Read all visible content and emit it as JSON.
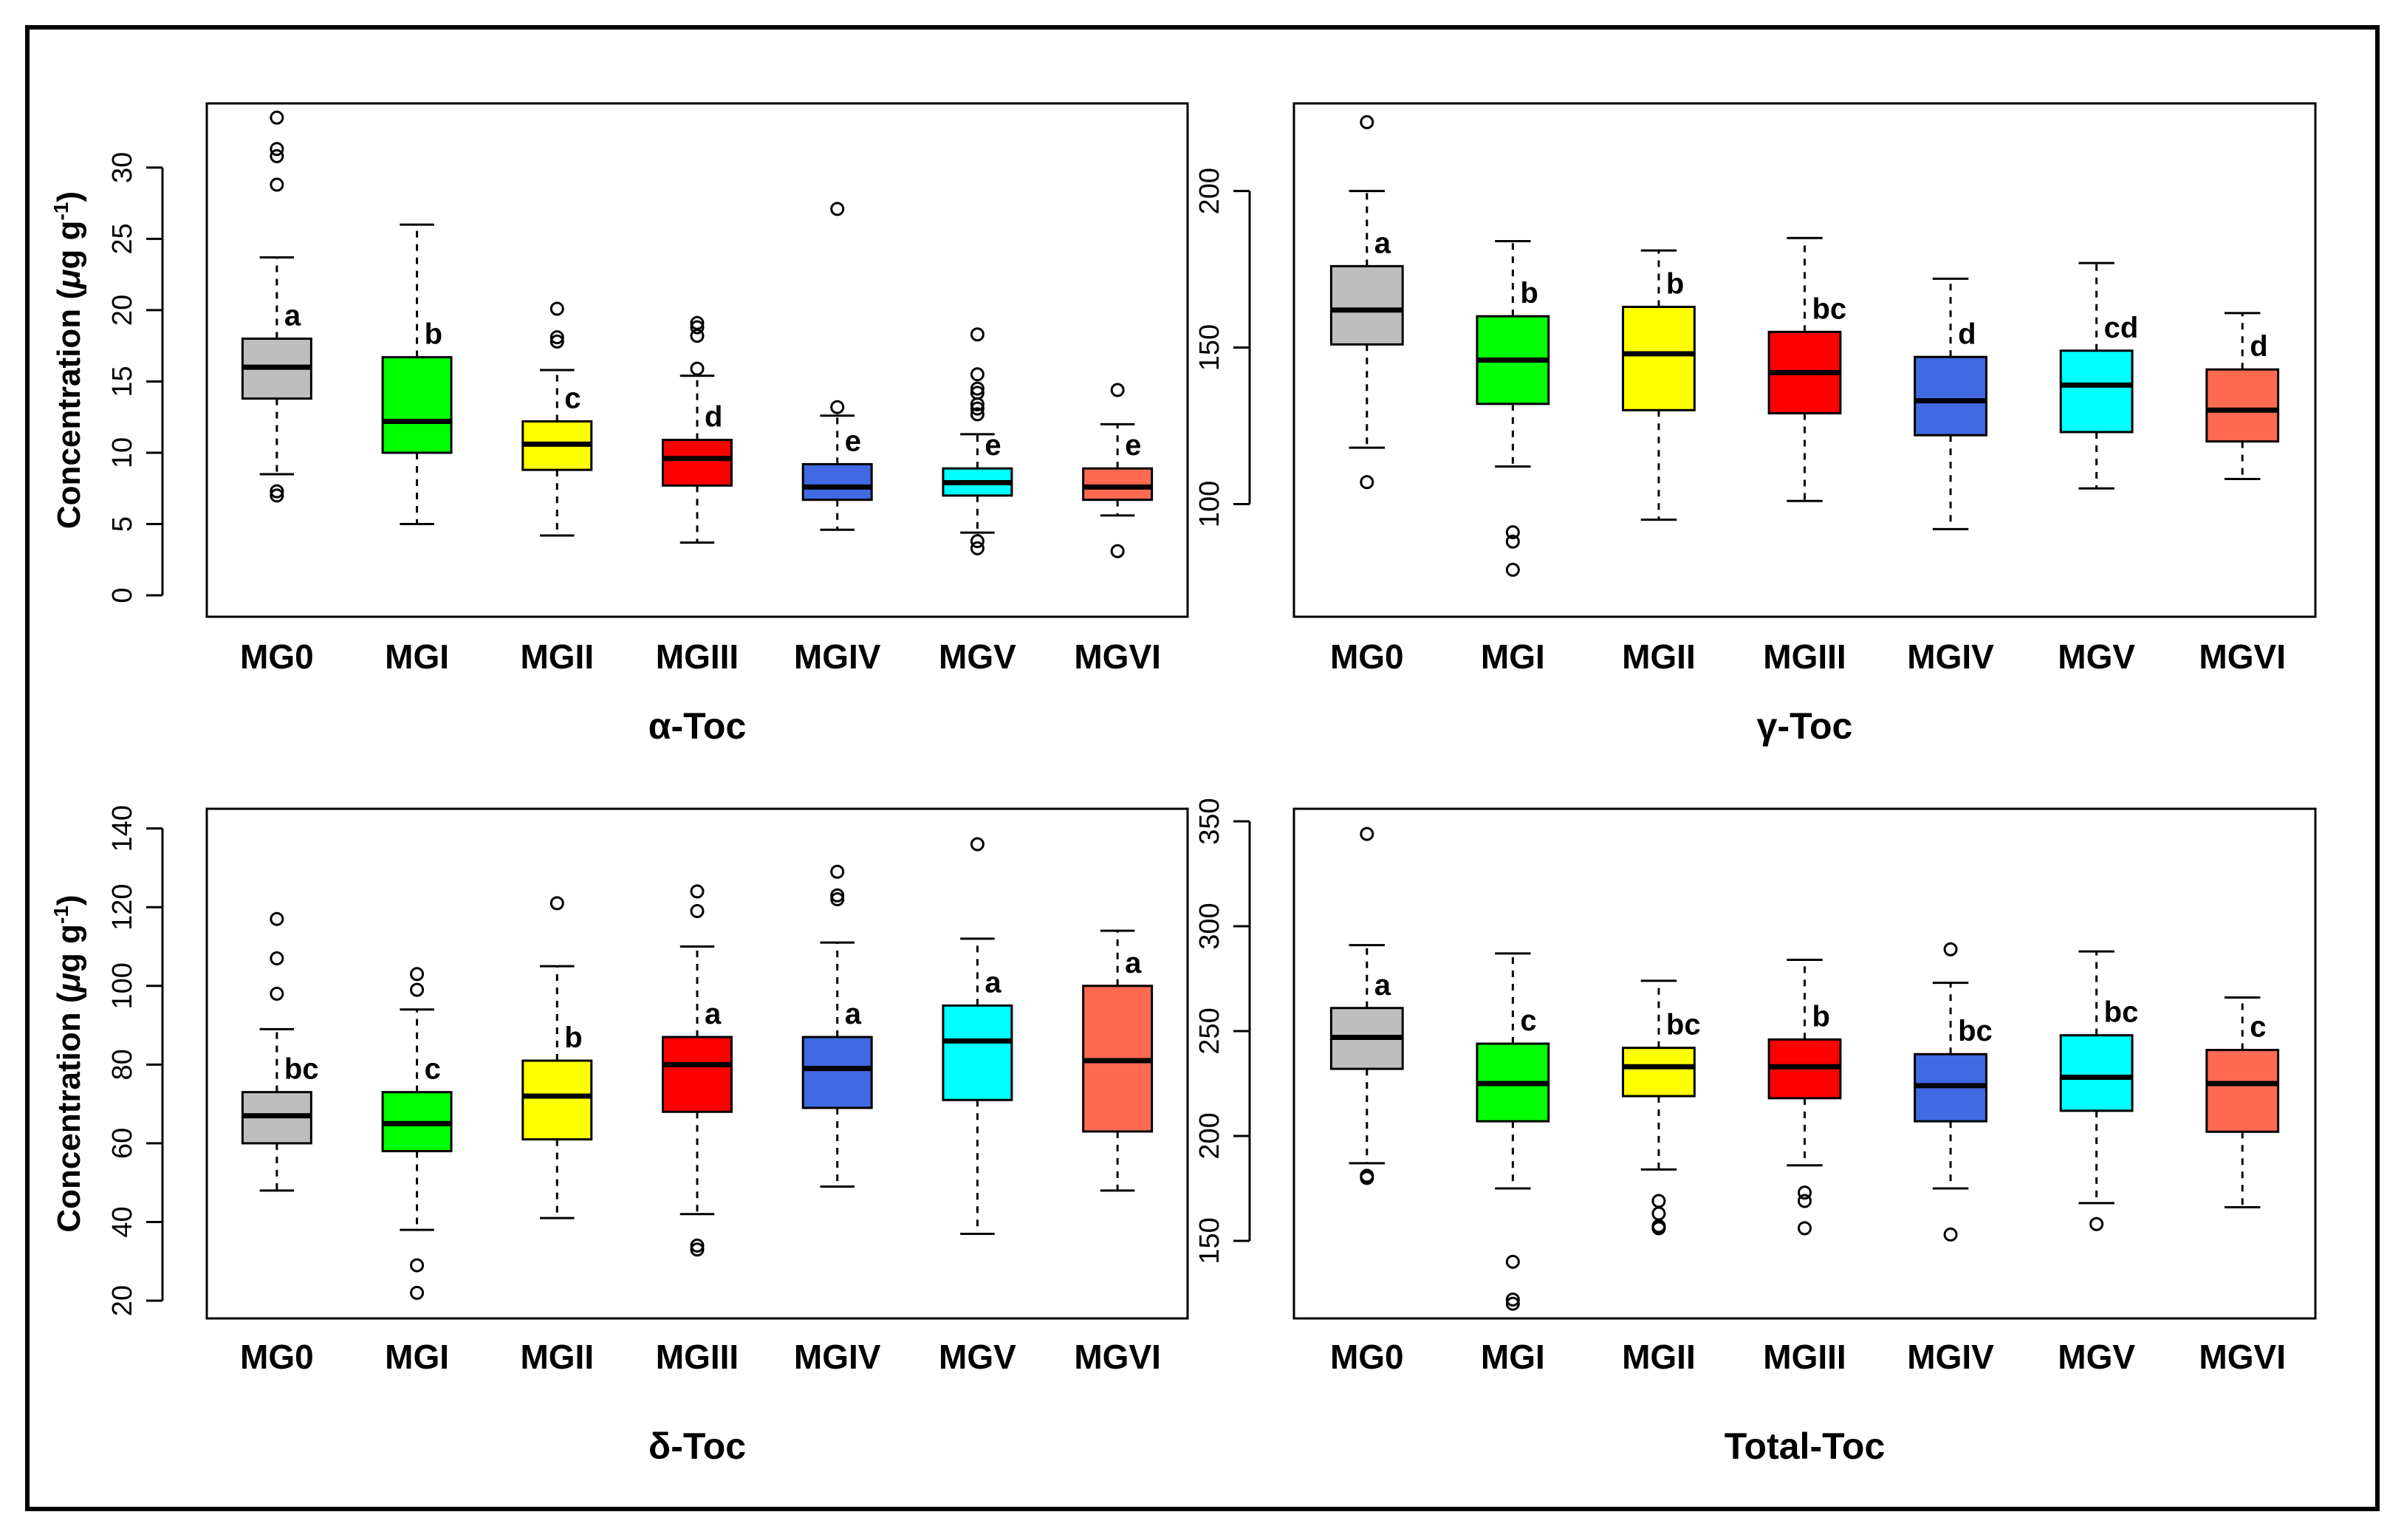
{
  "figure": {
    "colors": {
      "MG0": "#bebebe",
      "MGI": "#00ff00",
      "MGII": "#ffff00",
      "MGIII": "#ff0000",
      "MGIV": "#4169e1",
      "MGV": "#00ffff",
      "MGVI": "#ff6a50"
    }
  },
  "chart_data": [
    {
      "type": "box",
      "title": "α-Toc",
      "ylabel": "Concentration (μg g⁻¹)",
      "ylabel_parts": {
        "main": "Concentration (",
        "mu": "μ",
        "unit": "g g",
        "sup": "-1",
        "close": ")"
      },
      "ylim": [
        -1.5,
        34.5
      ],
      "yticks": [
        0,
        5,
        10,
        15,
        20,
        25,
        30
      ],
      "yticks_labels": [
        "0",
        "5",
        "10",
        "15",
        "20",
        "25",
        "30"
      ],
      "categories": [
        "MG0",
        "MGI",
        "MGII",
        "MGIII",
        "MGIV",
        "MGV",
        "MGVI"
      ],
      "boxes": [
        {
          "wlo": 8.5,
          "q1": 13.8,
          "med": 16.0,
          "q3": 18.0,
          "whi": 23.7,
          "outliers": [
            7.0,
            7.3,
            28.8,
            30.8,
            31.3,
            33.5
          ],
          "letter": "a"
        },
        {
          "wlo": 5.0,
          "q1": 10.0,
          "med": 12.2,
          "q3": 16.7,
          "whi": 26.0,
          "outliers": [],
          "letter": "b"
        },
        {
          "wlo": 4.2,
          "q1": 8.8,
          "med": 10.6,
          "q3": 12.2,
          "whi": 15.8,
          "outliers": [
            17.8,
            18.1,
            20.1
          ],
          "letter": "c"
        },
        {
          "wlo": 3.7,
          "q1": 7.7,
          "med": 9.6,
          "q3": 10.9,
          "whi": 15.4,
          "outliers": [
            15.9,
            18.2,
            18.8,
            19.1
          ],
          "letter": "d"
        },
        {
          "wlo": 4.6,
          "q1": 6.7,
          "med": 7.6,
          "q3": 9.2,
          "whi": 12.6,
          "outliers": [
            13.2,
            27.1
          ],
          "letter": "e"
        },
        {
          "wlo": 4.4,
          "q1": 7.0,
          "med": 7.9,
          "q3": 8.9,
          "whi": 11.3,
          "outliers": [
            3.3,
            3.8,
            12.7,
            13.1,
            13.4,
            14.2,
            14.5,
            15.5,
            18.3
          ],
          "letter": "e"
        },
        {
          "wlo": 5.6,
          "q1": 6.7,
          "med": 7.6,
          "q3": 8.9,
          "whi": 12.0,
          "outliers": [
            3.1,
            14.4
          ],
          "letter": "e"
        }
      ]
    },
    {
      "type": "box",
      "title": "γ-Toc",
      "ylabel": "",
      "ylim": [
        64,
        228
      ],
      "yticks": [
        100,
        150,
        200
      ],
      "yticks_labels": [
        "100",
        "150",
        "200"
      ],
      "categories": [
        "MG0",
        "MGI",
        "MGII",
        "MGIII",
        "MGIV",
        "MGV",
        "MGVI"
      ],
      "boxes": [
        {
          "wlo": 118,
          "q1": 151,
          "med": 162,
          "q3": 176,
          "whi": 200,
          "outliers": [
            107,
            222
          ],
          "letter": "a"
        },
        {
          "wlo": 112,
          "q1": 132,
          "med": 146,
          "q3": 160,
          "whi": 184,
          "outliers": [
            79,
            88,
            91
          ],
          "letter": "b"
        },
        {
          "wlo": 95,
          "q1": 130,
          "med": 148,
          "q3": 163,
          "whi": 181,
          "outliers": [],
          "letter": "b"
        },
        {
          "wlo": 101,
          "q1": 129,
          "med": 142,
          "q3": 155,
          "whi": 185,
          "outliers": [],
          "letter": "bc"
        },
        {
          "wlo": 92,
          "q1": 122,
          "med": 133,
          "q3": 147,
          "whi": 172,
          "outliers": [],
          "letter": "d"
        },
        {
          "wlo": 105,
          "q1": 123,
          "med": 138,
          "q3": 149,
          "whi": 177,
          "outliers": [],
          "letter": "cd"
        },
        {
          "wlo": 108,
          "q1": 120,
          "med": 130,
          "q3": 143,
          "whi": 161,
          "outliers": [],
          "letter": "d"
        }
      ]
    },
    {
      "type": "box",
      "title": "δ-Toc",
      "ylabel": "Concentration (μg g⁻¹)",
      "ylabel_parts": {
        "main": "Concentration (",
        "mu": "μ",
        "unit": "g g",
        "sup": "-1",
        "close": ")"
      },
      "ylim": [
        15.5,
        145
      ],
      "yticks": [
        20,
        40,
        60,
        80,
        100,
        120,
        140
      ],
      "yticks_labels": [
        "20",
        "40",
        "60",
        "80",
        "100",
        "120",
        "140"
      ],
      "categories": [
        "MG0",
        "MGI",
        "MGII",
        "MGIII",
        "MGIV",
        "MGV",
        "MGVI"
      ],
      "boxes": [
        {
          "wlo": 48,
          "q1": 60,
          "med": 67,
          "q3": 73,
          "whi": 89,
          "outliers": [
            98,
            107,
            117
          ],
          "letter": "bc"
        },
        {
          "wlo": 38,
          "q1": 58,
          "med": 65,
          "q3": 73,
          "whi": 94,
          "outliers": [
            22,
            29,
            99,
            103
          ],
          "letter": "c"
        },
        {
          "wlo": 41,
          "q1": 61,
          "med": 72,
          "q3": 81,
          "whi": 105,
          "outliers": [
            121
          ],
          "letter": "b"
        },
        {
          "wlo": 42,
          "q1": 68,
          "med": 80,
          "q3": 87,
          "whi": 110,
          "outliers": [
            33,
            34,
            119,
            124
          ],
          "letter": "a"
        },
        {
          "wlo": 49,
          "q1": 69,
          "med": 79,
          "q3": 87,
          "whi": 111,
          "outliers": [
            122,
            123,
            129
          ],
          "letter": "a"
        },
        {
          "wlo": 37,
          "q1": 71,
          "med": 86,
          "q3": 95,
          "whi": 112,
          "outliers": [
            136
          ],
          "letter": "a"
        },
        {
          "wlo": 48,
          "q1": 63,
          "med": 81,
          "q3": 100,
          "whi": 114,
          "outliers": [],
          "letter": "a"
        }
      ]
    },
    {
      "type": "box",
      "title": "Total-Toc",
      "ylabel": "",
      "ylim": [
        113,
        356
      ],
      "yticks": [
        150,
        200,
        250,
        300,
        350
      ],
      "yticks_labels": [
        "150",
        "200",
        "250",
        "300",
        "350"
      ],
      "categories": [
        "MG0",
        "MGI",
        "MGII",
        "MGIII",
        "MGIV",
        "MGV",
        "MGVI"
      ],
      "boxes": [
        {
          "wlo": 187,
          "q1": 232,
          "med": 247,
          "q3": 261,
          "whi": 291,
          "outliers": [
            180,
            181,
            344
          ],
          "letter": "a"
        },
        {
          "wlo": 175,
          "q1": 207,
          "med": 225,
          "q3": 244,
          "whi": 287,
          "outliers": [
            120,
            122,
            140
          ],
          "letter": "c"
        },
        {
          "wlo": 184,
          "q1": 219,
          "med": 233,
          "q3": 242,
          "whi": 274,
          "outliers": [
            156,
            157,
            163,
            169
          ],
          "letter": "bc"
        },
        {
          "wlo": 186,
          "q1": 218,
          "med": 233,
          "q3": 246,
          "whi": 284,
          "outliers": [
            156,
            169,
            173
          ],
          "letter": "b"
        },
        {
          "wlo": 175,
          "q1": 207,
          "med": 224,
          "q3": 239,
          "whi": 273,
          "outliers": [
            153,
            289
          ],
          "letter": "bc"
        },
        {
          "wlo": 168,
          "q1": 212,
          "med": 228,
          "q3": 248,
          "whi": 288,
          "outliers": [
            158
          ],
          "letter": "bc"
        },
        {
          "wlo": 166,
          "q1": 202,
          "med": 225,
          "q3": 241,
          "whi": 266,
          "outliers": [],
          "letter": "c"
        }
      ]
    }
  ]
}
